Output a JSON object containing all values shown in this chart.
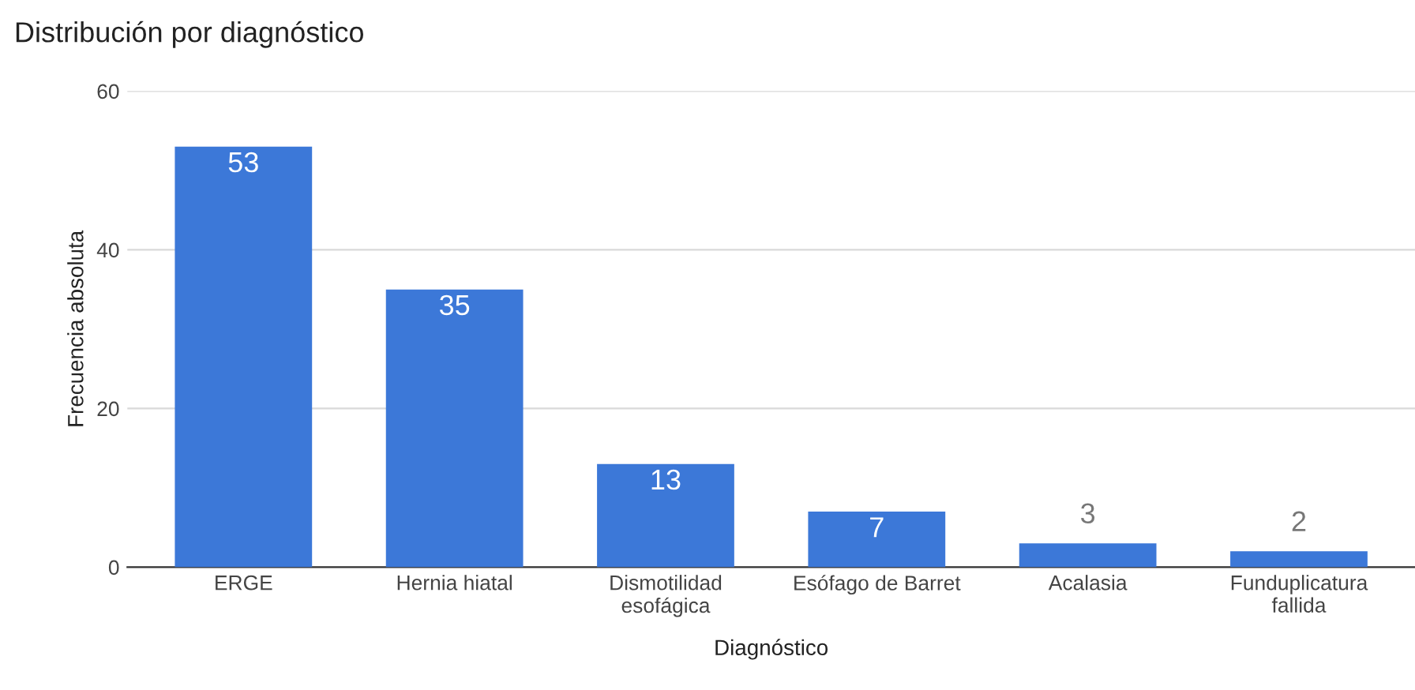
{
  "chart_data": {
    "type": "bar",
    "title": "Distribución por diagnóstico",
    "xlabel": "Diagnóstico",
    "ylabel": "Frecuencia absoluta",
    "categories": [
      "ERGE",
      "Hernia hiatal",
      "Dismotilidad\nesofágica",
      "Esófago de Barret",
      "Acalasia",
      "Funduplicatura\nfallida"
    ],
    "values": [
      53,
      35,
      13,
      7,
      3,
      2
    ],
    "color": "#3c78d8",
    "ylim": [
      0,
      60
    ],
    "yticks": [
      0,
      20,
      40,
      60
    ],
    "grid": "y",
    "data_labels": true
  }
}
